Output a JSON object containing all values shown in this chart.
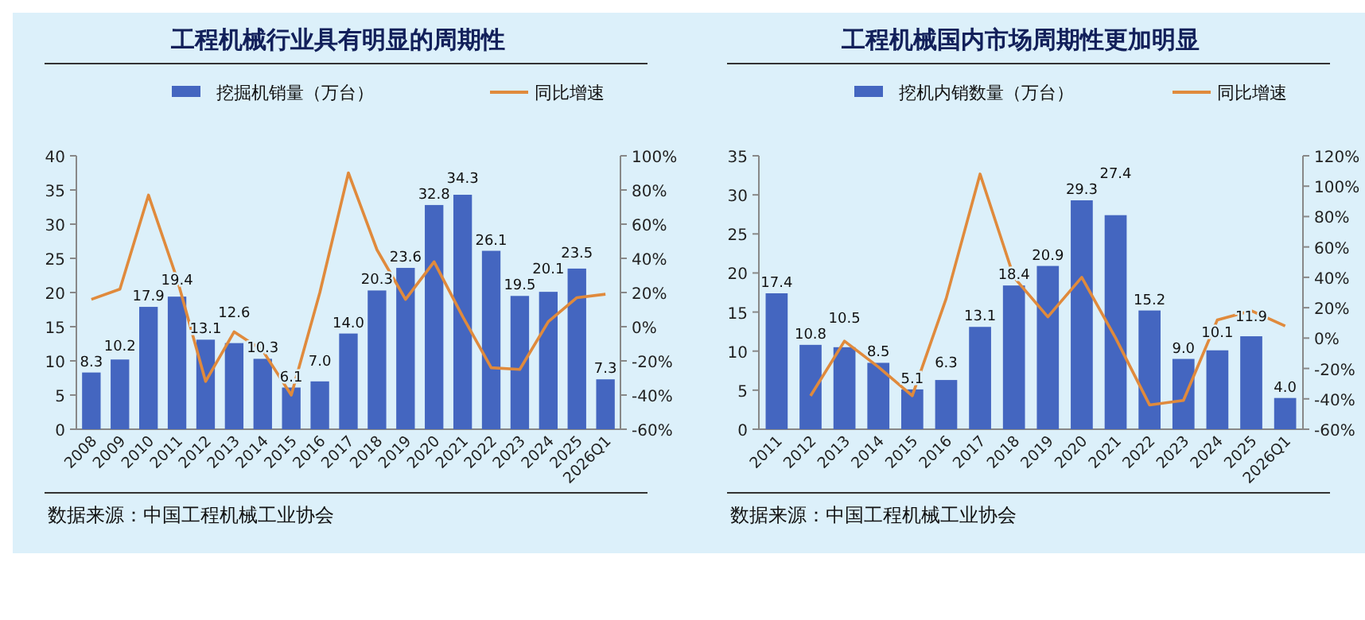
{
  "chart_data": [
    {
      "type": "bar",
      "title": "工程机械行业具有明显的周期性",
      "categories": [
        "2008",
        "2009",
        "2010",
        "2011",
        "2012",
        "2013",
        "2014",
        "2015",
        "2016",
        "2017",
        "2018",
        "2019",
        "2020",
        "2021",
        "2022",
        "2023",
        "2024",
        "2025",
        "2026Q1"
      ],
      "series": [
        {
          "name": "挖掘机销量（万台）",
          "color": "#4466c0",
          "values": [
            8.3,
            10.2,
            17.9,
            19.4,
            13.1,
            12.6,
            10.3,
            6.1,
            7.0,
            14.0,
            20.3,
            23.6,
            32.8,
            34.3,
            26.1,
            19.5,
            20.1,
            23.5,
            7.3
          ],
          "value_labels": [
            "8.3",
            "10.2",
            "17.9",
            "19.4",
            "13.1",
            "12.6",
            "10.3",
            "6.1",
            "7.0",
            "14.0",
            "20.3",
            "23.6",
            "32.8",
            "34.3",
            "26.1",
            "19.5",
            "20.1",
            "23.5",
            "7.3"
          ]
        },
        {
          "name": "同比增速",
          "type": "line",
          "axis": "y2",
          "color": "#e08a3c",
          "values": [
            16,
            22,
            77,
            28,
            -32,
            -3,
            -14,
            -40,
            20,
            90,
            45,
            16,
            38,
            6,
            -24,
            -25,
            3,
            17,
            19
          ]
        }
      ],
      "ylim": [
        0,
        40
      ],
      "yticks": [
        0,
        5,
        10,
        15,
        20,
        25,
        30,
        35,
        40
      ],
      "y2lim": [
        -60,
        100
      ],
      "legend": "top",
      "annotations": [
        "数据来源：中国工程机械工业协会"
      ],
      "y2ticks": [
        {
          "value": -60,
          "label": "-60%"
        },
        {
          "value": -40,
          "label": "-40%"
        },
        {
          "value": -20,
          "label": "-20%"
        },
        {
          "value": 0,
          "label": "0%"
        },
        {
          "value": 20,
          "label": "20%"
        },
        {
          "value": 40,
          "label": "40%"
        },
        {
          "value": 60,
          "label": "60%"
        },
        {
          "value": 80,
          "label": "80%"
        },
        {
          "value": 100,
          "label": "100%"
        }
      ]
    },
    {
      "type": "bar",
      "title": "工程机械国内市场周期性更加明显",
      "categories": [
        "2011",
        "2012",
        "2013",
        "2014",
        "2015",
        "2016",
        "2017",
        "2018",
        "2019",
        "2020",
        "2021",
        "2022",
        "2023",
        "2024",
        "2025",
        "2026Q1"
      ],
      "series": [
        {
          "name": "挖机内销数量（万台）",
          "color": "#4466c0",
          "values": [
            17.4,
            10.8,
            10.5,
            8.5,
            5.1,
            6.3,
            13.1,
            18.4,
            20.9,
            29.3,
            27.4,
            15.2,
            9.0,
            10.1,
            11.9,
            4.0
          ],
          "value_labels": [
            "17.4",
            "10.8",
            "10.5",
            "8.5",
            "5.1",
            "6.3",
            "13.1",
            "18.4",
            "20.9",
            "29.3",
            "27.4",
            "15.2",
            "9.0",
            "10.1",
            "11.9",
            "4.0"
          ]
        },
        {
          "name": "同比增速",
          "type": "line",
          "axis": "y2",
          "color": "#e08a3c",
          "values": [
            null,
            -38,
            -2,
            -19,
            -38,
            26,
            108,
            40,
            14,
            40,
            0,
            -44,
            -41,
            12,
            18,
            8
          ]
        }
      ],
      "ylim": [
        0,
        35
      ],
      "yticks": [
        0,
        5,
        10,
        15,
        20,
        25,
        30,
        35
      ],
      "y2lim": [
        -60,
        120
      ],
      "y2ticks": [
        {
          "value": -60,
          "label": "-60%"
        },
        {
          "value": -40,
          "label": "-40%"
        },
        {
          "value": -20,
          "label": "-20%"
        },
        {
          "value": 0,
          "label": "0%"
        },
        {
          "value": 20,
          "label": "20%"
        },
        {
          "value": 40,
          "label": "40%"
        },
        {
          "value": 60,
          "label": "60%"
        },
        {
          "value": 80,
          "label": "80%"
        },
        {
          "value": 100,
          "label": "100%"
        },
        {
          "value": 120,
          "label": "120%"
        }
      ],
      "legend": "top",
      "annotations": [
        "数据来源：中国工程机械工业协会"
      ]
    }
  ]
}
